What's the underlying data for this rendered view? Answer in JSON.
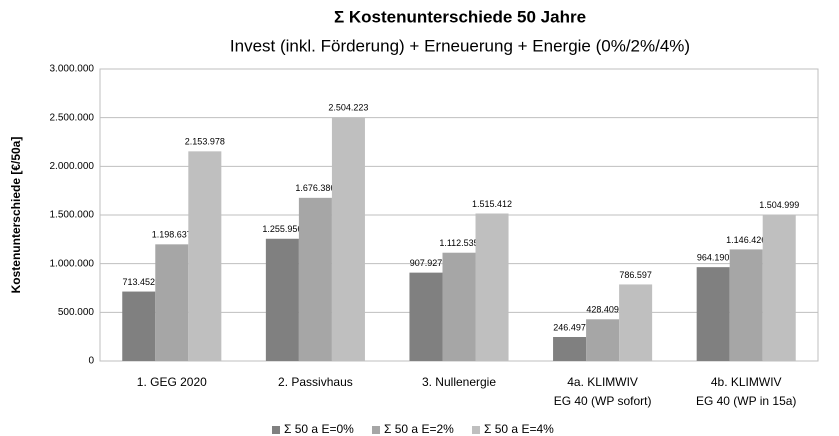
{
  "chart_data": {
    "type": "bar",
    "title": "Σ Kostenunterschiede 50 Jahre",
    "subtitle": "Invest (inkl. Förderung) + Erneuerung + Energie (0%/2%/4%)",
    "y_label": "Kostenunterschiede [€/50a]",
    "categories": [
      [
        "1. GEG 2020"
      ],
      [
        "2. Passivhaus"
      ],
      [
        "3. Nullenergie"
      ],
      [
        "4a. KLIMWIV",
        "EG 40 (WP sofort)"
      ],
      [
        "4b. KLIMWIV",
        "EG 40 (WP in 15a)"
      ]
    ],
    "series": [
      {
        "name": "Σ 50 a E=0%",
        "color": "#808080",
        "values": [
          713452,
          1255956,
          907927,
          246497,
          964190
        ],
        "value_labels": [
          "713.452",
          "1.255.956",
          "907.927",
          "246.497",
          "964.190"
        ]
      },
      {
        "name": "Σ 50 a E=2%",
        "color": "#a6a6a6",
        "values": [
          1198637,
          1676386,
          1112535,
          428409,
          1146426
        ],
        "value_labels": [
          "1.198.637",
          "1.676.386",
          "1.112.535",
          "428.409",
          "1.146.426"
        ]
      },
      {
        "name": "Σ 50 a E=4%",
        "color": "#bfbfbf",
        "values": [
          2153978,
          2504223,
          1515412,
          786597,
          1504999
        ],
        "value_labels": [
          "2.153.978",
          "2.504.223",
          "1.515.412",
          "786.597",
          "1.504.999"
        ]
      }
    ],
    "ylim": [
      0,
      3000000
    ],
    "yticks": [
      0,
      {
        "value": 500000,
        "label": "500.000"
      },
      {
        "value": 1000000,
        "label": "1.000.000"
      },
      {
        "value": 1500000,
        "label": "1.500.000"
      },
      {
        "value": 2000000,
        "label": "2.000.000"
      },
      {
        "value": 2500000,
        "label": "2.500.000"
      },
      {
        "value": 3000000,
        "label": "3.000.000"
      }
    ],
    "grid": true,
    "legend": "bottom"
  }
}
